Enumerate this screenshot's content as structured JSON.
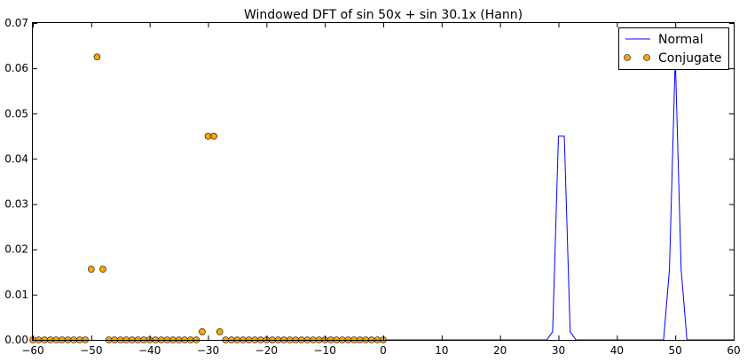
{
  "chart_data": {
    "type": "line",
    "title": "Windowed DFT of sin 50x + sin 30.1x (Hann)",
    "xlabel": "",
    "ylabel": "",
    "xlim": [
      -60,
      60
    ],
    "ylim": [
      0,
      0.07
    ],
    "xticks": [
      "−60",
      "−50",
      "−40",
      "−30",
      "−20",
      "−10",
      "0",
      "10",
      "20",
      "30",
      "40",
      "50",
      "60"
    ],
    "yticks": [
      "0.00",
      "0.01",
      "0.02",
      "0.03",
      "0.04",
      "0.05",
      "0.06",
      "0.07"
    ],
    "legend_position": "top-right",
    "grid": false,
    "colors": {
      "normal": "#0000ff",
      "conjugate": "#ffa500"
    },
    "series": [
      {
        "name": "Normal",
        "style": "line",
        "points": [
          [
            0,
            0
          ],
          [
            28,
            0
          ],
          [
            29,
            0.0018
          ],
          [
            30,
            0.045
          ],
          [
            31,
            0.045
          ],
          [
            32,
            0.0018
          ],
          [
            33,
            0
          ],
          [
            47,
            0
          ],
          [
            48,
            0
          ],
          [
            49,
            0.0156
          ],
          [
            50,
            0.0625
          ],
          [
            51,
            0.0156
          ],
          [
            52,
            0
          ],
          [
            60,
            0
          ]
        ]
      },
      {
        "name": "Conjugate",
        "style": "markers",
        "points": [
          [
            -60,
            0
          ],
          [
            -59,
            0
          ],
          [
            -58,
            0
          ],
          [
            -57,
            0
          ],
          [
            -56,
            0
          ],
          [
            -55,
            0
          ],
          [
            -54,
            0
          ],
          [
            -53,
            0
          ],
          [
            -52,
            0
          ],
          [
            -51,
            0
          ],
          [
            -50,
            0.0156
          ],
          [
            -49,
            0.0625
          ],
          [
            -48,
            0.0156
          ],
          [
            -47,
            0
          ],
          [
            -46,
            0
          ],
          [
            -45,
            0
          ],
          [
            -44,
            0
          ],
          [
            -43,
            0
          ],
          [
            -42,
            0
          ],
          [
            -41,
            0
          ],
          [
            -40,
            0
          ],
          [
            -39,
            0
          ],
          [
            -38,
            0
          ],
          [
            -37,
            0
          ],
          [
            -36,
            0
          ],
          [
            -35,
            0
          ],
          [
            -34,
            0
          ],
          [
            -33,
            0
          ],
          [
            -32,
            0
          ],
          [
            -31,
            0.0018
          ],
          [
            -30,
            0.045
          ],
          [
            -29,
            0.045
          ],
          [
            -28,
            0.0018
          ],
          [
            -27,
            0
          ],
          [
            -26,
            0
          ],
          [
            -25,
            0
          ],
          [
            -24,
            0
          ],
          [
            -23,
            0
          ],
          [
            -22,
            0
          ],
          [
            -21,
            0
          ],
          [
            -20,
            0
          ],
          [
            -19,
            0
          ],
          [
            -18,
            0
          ],
          [
            -17,
            0
          ],
          [
            -16,
            0
          ],
          [
            -15,
            0
          ],
          [
            -14,
            0
          ],
          [
            -13,
            0
          ],
          [
            -12,
            0
          ],
          [
            -11,
            0
          ],
          [
            -10,
            0
          ],
          [
            -9,
            0
          ],
          [
            -8,
            0
          ],
          [
            -7,
            0
          ],
          [
            -6,
            0
          ],
          [
            -5,
            0
          ],
          [
            -4,
            0
          ],
          [
            -3,
            0
          ],
          [
            -2,
            0
          ],
          [
            -1,
            0
          ],
          [
            0,
            0
          ]
        ]
      }
    ]
  }
}
